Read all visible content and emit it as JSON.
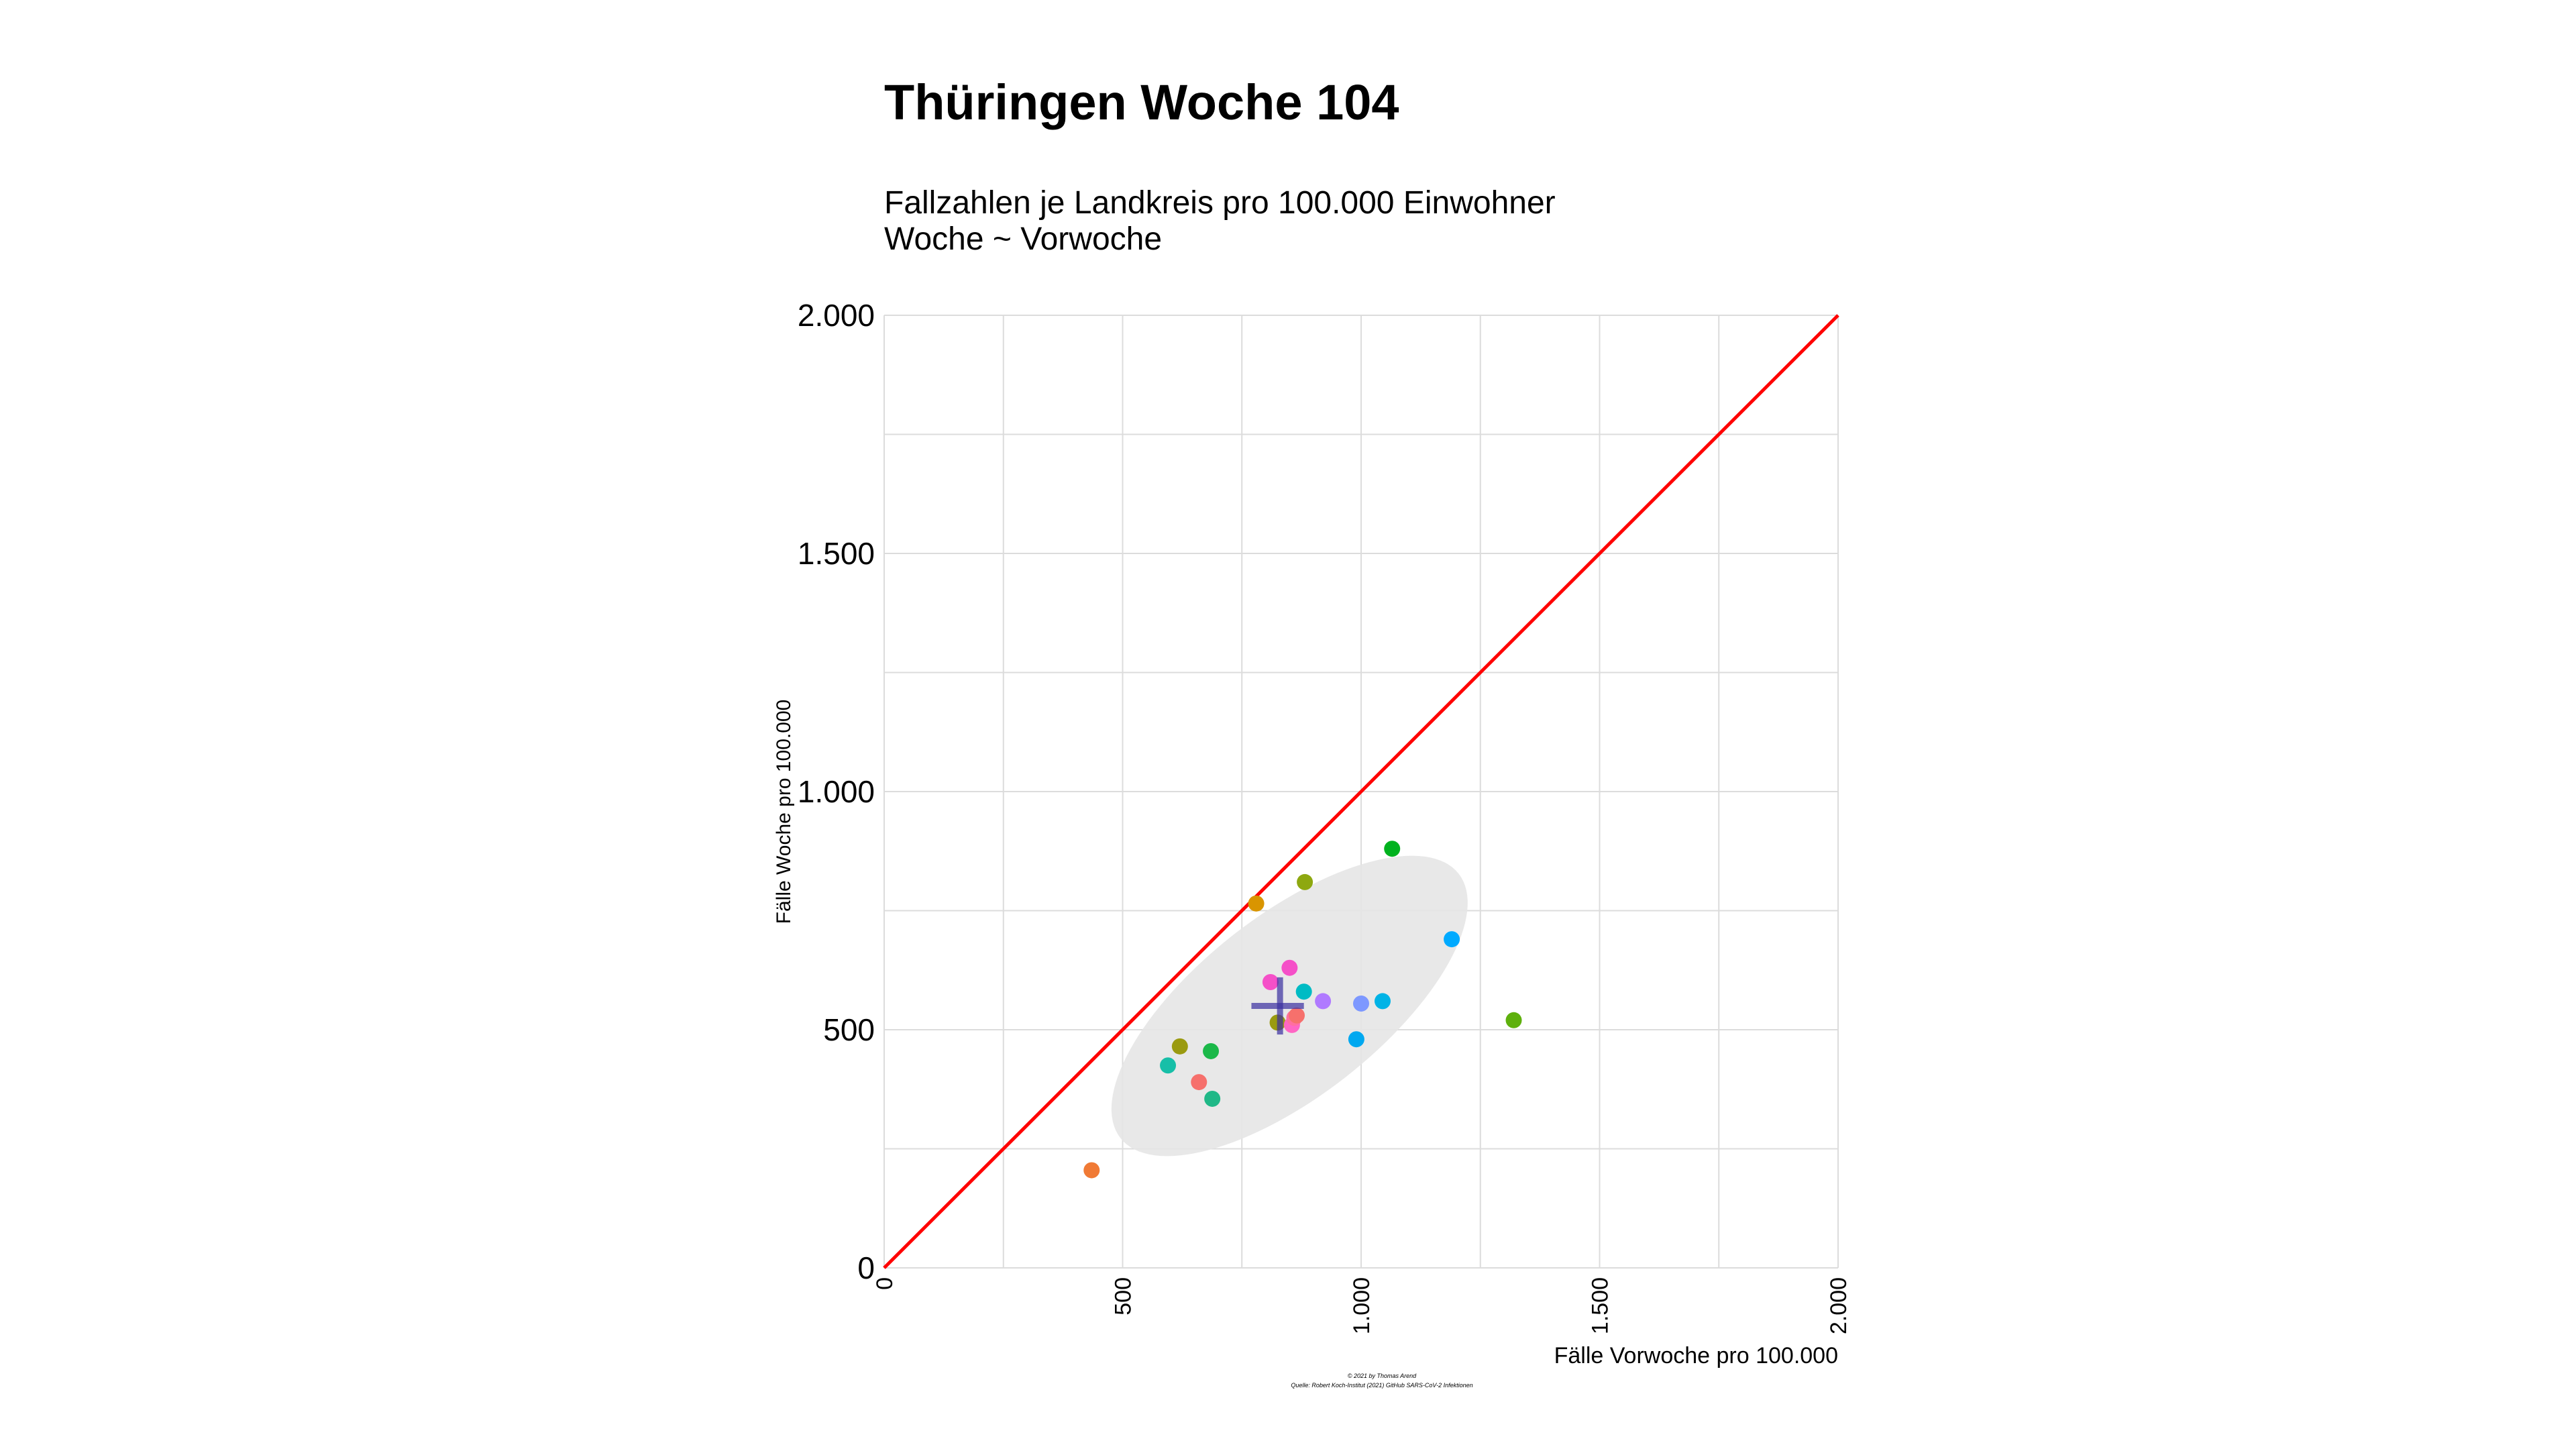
{
  "chart_data": {
    "type": "scatter",
    "title": "Thüringen Woche 104",
    "subtitle_lines": [
      "Fallzahlen je Landkreis pro 100.000 Einwohner",
      "Woche ~ Vorwoche"
    ],
    "xlabel": "Fälle Vorwoche pro 100.000",
    "ylabel": "Fälle Woche pro 100.000",
    "xlim": [
      0,
      2000
    ],
    "ylim": [
      0,
      2000
    ],
    "x_ticks": [
      0,
      500,
      1000,
      1500,
      2000
    ],
    "y_ticks": [
      0,
      500,
      1000,
      1500,
      2000
    ],
    "x_tick_labels": [
      "0",
      "500",
      "1.000",
      "1.500",
      "2.000"
    ],
    "y_tick_labels": [
      "0",
      "500",
      "1.000",
      "1.500",
      "2.000"
    ],
    "grid": true,
    "reference_line": {
      "from": [
        0,
        0
      ],
      "to": [
        2000,
        2000
      ],
      "color": "#ff0000"
    },
    "ellipse": {
      "center": [
        850,
        550
      ],
      "rx_data": 450,
      "ry_data": 190,
      "angle_deg": 38,
      "color": "#e6e6e6"
    },
    "mean_cross": {
      "x": [
        770,
        880
      ],
      "y": [
        490,
        610
      ],
      "center": [
        830,
        550
      ],
      "color": "#3a2fa0"
    },
    "points": [
      {
        "x": 435,
        "y": 205,
        "color": "#f07a35"
      },
      {
        "x": 595,
        "y": 425,
        "color": "#17bfa8"
      },
      {
        "x": 620,
        "y": 465,
        "color": "#9a9a10"
      },
      {
        "x": 660,
        "y": 390,
        "color": "#f6706c"
      },
      {
        "x": 685,
        "y": 455,
        "color": "#1bb849"
      },
      {
        "x": 688,
        "y": 355,
        "color": "#20b887"
      },
      {
        "x": 780,
        "y": 765,
        "color": "#d99500"
      },
      {
        "x": 810,
        "y": 600,
        "color": "#f550c8"
      },
      {
        "x": 825,
        "y": 515,
        "color": "#9a9a10"
      },
      {
        "x": 850,
        "y": 630,
        "color": "#f550c8"
      },
      {
        "x": 855,
        "y": 510,
        "color": "#ff66c4"
      },
      {
        "x": 860,
        "y": 525,
        "color": "#ff6fa0"
      },
      {
        "x": 865,
        "y": 530,
        "color": "#f6706c"
      },
      {
        "x": 880,
        "y": 580,
        "color": "#00bbc4"
      },
      {
        "x": 882,
        "y": 810,
        "color": "#8ea810"
      },
      {
        "x": 920,
        "y": 560,
        "color": "#b07aff"
      },
      {
        "x": 990,
        "y": 480,
        "color": "#00a8f0"
      },
      {
        "x": 1000,
        "y": 555,
        "color": "#7d98ff"
      },
      {
        "x": 1045,
        "y": 560,
        "color": "#00b3e6"
      },
      {
        "x": 1065,
        "y": 880,
        "color": "#00b21e"
      },
      {
        "x": 1190,
        "y": 690,
        "color": "#00aaff"
      },
      {
        "x": 1320,
        "y": 520,
        "color": "#5eb00d"
      }
    ],
    "caption_lines": [
      "© 2021 by Thomas Arend",
      "Quelle: Robert Koch-Institut (2021) GitHub SARS-CoV-2 Infektionen"
    ]
  }
}
